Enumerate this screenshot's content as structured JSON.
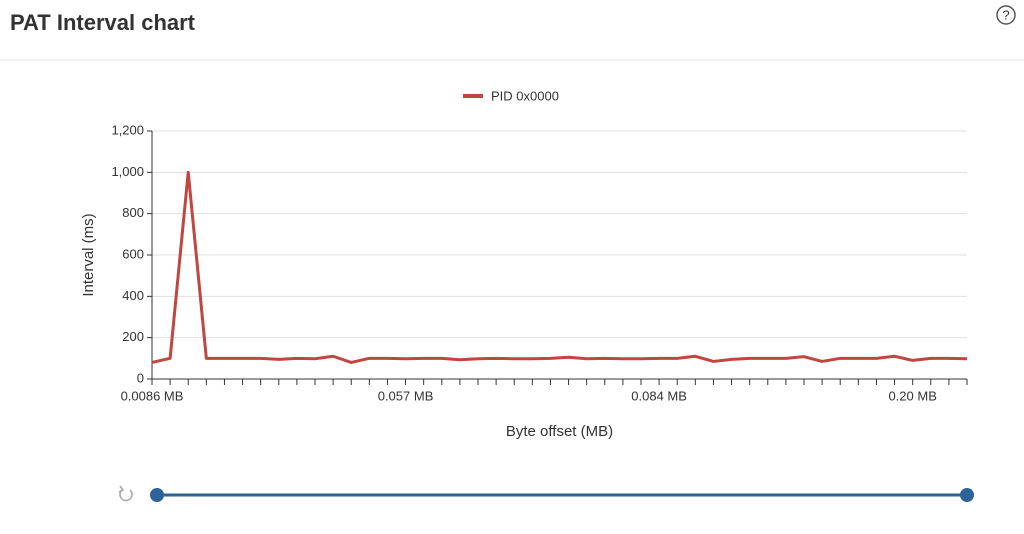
{
  "header": {
    "title": "PAT Interval chart"
  },
  "chart_data": {
    "type": "line",
    "x_label": "Byte offset (MB)",
    "y_label": "Interval (ms)",
    "categories": [
      "0.0086 MB",
      null,
      null,
      null,
      null,
      null,
      null,
      null,
      null,
      null,
      null,
      null,
      null,
      null,
      "0.057 MB",
      null,
      null,
      null,
      null,
      null,
      null,
      null,
      null,
      null,
      null,
      null,
      null,
      null,
      "0.084 MB",
      null,
      null,
      null,
      null,
      null,
      null,
      null,
      null,
      null,
      null,
      null,
      null,
      null,
      "0.20 MB",
      null,
      null,
      null
    ],
    "series": [
      {
        "name": "PID 0x0000",
        "color": "#c0463f",
        "values": [
          80,
          100,
          1000,
          100,
          100,
          100,
          100,
          95,
          100,
          98,
          110,
          80,
          100,
          100,
          98,
          100,
          100,
          93,
          98,
          100,
          98,
          98,
          100,
          105,
          98,
          100,
          98,
          98,
          100,
          100,
          110,
          85,
          95,
          100,
          100,
          100,
          108,
          85,
          100,
          100,
          100,
          110,
          90,
          100,
          100,
          98
        ]
      }
    ],
    "ylim": [
      0,
      1200
    ],
    "yticks": [
      0,
      200,
      400,
      600,
      800,
      {
        "value": 1000,
        "label": "1,000"
      },
      {
        "value": 1200,
        "label": "1,200"
      }
    ],
    "grid": true,
    "legend": "top"
  }
}
